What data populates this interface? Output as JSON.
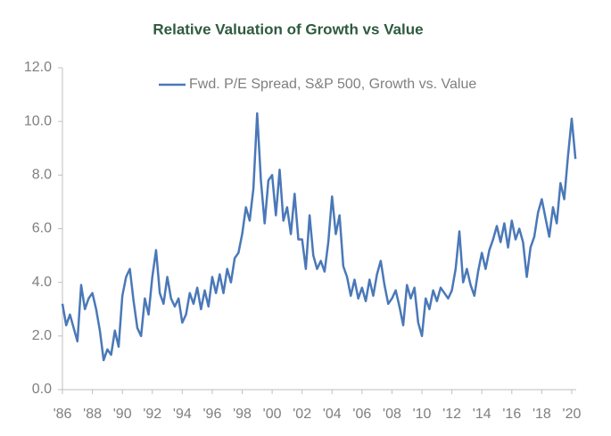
{
  "chart_data": {
    "type": "line",
    "title": "Relative Valuation of Growth vs Value",
    "x": [
      1986.0,
      1986.25,
      1986.5,
      1986.75,
      1987.0,
      1987.25,
      1987.5,
      1987.75,
      1988.0,
      1988.25,
      1988.5,
      1988.75,
      1989.0,
      1989.25,
      1989.5,
      1989.75,
      1990.0,
      1990.25,
      1990.5,
      1990.75,
      1991.0,
      1991.25,
      1991.5,
      1991.75,
      1992.0,
      1992.25,
      1992.5,
      1992.75,
      1993.0,
      1993.25,
      1993.5,
      1993.75,
      1994.0,
      1994.25,
      1994.5,
      1994.75,
      1995.0,
      1995.25,
      1995.5,
      1995.75,
      1996.0,
      1996.25,
      1996.5,
      1996.75,
      1997.0,
      1997.25,
      1997.5,
      1997.75,
      1998.0,
      1998.25,
      1998.5,
      1998.75,
      1999.0,
      1999.25,
      1999.5,
      1999.75,
      2000.0,
      2000.25,
      2000.5,
      2000.75,
      2001.0,
      2001.25,
      2001.5,
      2001.75,
      2002.0,
      2002.25,
      2002.5,
      2002.75,
      2003.0,
      2003.25,
      2003.5,
      2003.75,
      2004.0,
      2004.25,
      2004.5,
      2004.75,
      2005.0,
      2005.25,
      2005.5,
      2005.75,
      2006.0,
      2006.25,
      2006.5,
      2006.75,
      2007.0,
      2007.25,
      2007.5,
      2007.75,
      2008.0,
      2008.25,
      2008.5,
      2008.75,
      2009.0,
      2009.25,
      2009.5,
      2009.75,
      2010.0,
      2010.25,
      2010.5,
      2010.75,
      2011.0,
      2011.25,
      2011.5,
      2011.75,
      2012.0,
      2012.25,
      2012.5,
      2012.75,
      2013.0,
      2013.25,
      2013.5,
      2013.75,
      2014.0,
      2014.25,
      2014.5,
      2014.75,
      2015.0,
      2015.25,
      2015.5,
      2015.75,
      2016.0,
      2016.25,
      2016.5,
      2016.75,
      2017.0,
      2017.25,
      2017.5,
      2017.75,
      2018.0,
      2018.25,
      2018.5,
      2018.75,
      2019.0,
      2019.25,
      2019.5,
      2019.75,
      2020.0,
      2020.25
    ],
    "series": [
      {
        "name": "Fwd. P/E Spread, S&P 500, Growth vs. Value",
        "color": "#4a78b8",
        "values": [
          3.2,
          2.4,
          2.8,
          2.3,
          1.8,
          3.9,
          3.0,
          3.4,
          3.6,
          3.0,
          2.2,
          1.1,
          1.5,
          1.3,
          2.2,
          1.6,
          3.5,
          4.2,
          4.5,
          3.3,
          2.3,
          2.0,
          3.4,
          2.8,
          4.2,
          5.2,
          3.6,
          3.2,
          4.2,
          3.4,
          3.1,
          3.4,
          2.5,
          2.8,
          3.6,
          3.2,
          3.8,
          3.0,
          3.7,
          3.1,
          4.2,
          3.6,
          4.3,
          3.6,
          4.5,
          4.0,
          4.9,
          5.1,
          5.8,
          6.8,
          6.3,
          7.5,
          10.3,
          7.8,
          6.2,
          7.8,
          8.0,
          6.5,
          8.2,
          6.3,
          6.8,
          5.8,
          7.3,
          5.6,
          5.6,
          4.5,
          6.5,
          5.0,
          4.5,
          4.8,
          4.4,
          5.5,
          7.2,
          5.8,
          6.5,
          4.6,
          4.2,
          3.5,
          4.1,
          3.4,
          3.8,
          3.3,
          4.1,
          3.5,
          4.3,
          4.8,
          3.9,
          3.2,
          3.4,
          3.7,
          3.1,
          2.4,
          3.9,
          3.4,
          3.8,
          2.5,
          2.0,
          3.4,
          3.0,
          3.7,
          3.3,
          3.8,
          3.6,
          3.4,
          3.7,
          4.5,
          5.9,
          4.0,
          4.5,
          3.9,
          3.5,
          4.4,
          5.1,
          4.5,
          5.2,
          5.6,
          6.1,
          5.5,
          6.2,
          5.3,
          6.3,
          5.6,
          6.0,
          5.5,
          4.2,
          5.3,
          5.7,
          6.6,
          7.1,
          6.4,
          5.7,
          6.8,
          6.2,
          7.7,
          7.1,
          8.7,
          10.1,
          8.6
        ]
      }
    ],
    "xlim": [
      1986,
      2020.3
    ],
    "xticks": [
      {
        "value": 1986,
        "label": "'86"
      },
      {
        "value": 1988,
        "label": "'88"
      },
      {
        "value": 1990,
        "label": "'90"
      },
      {
        "value": 1992,
        "label": "'92"
      },
      {
        "value": 1994,
        "label": "'94"
      },
      {
        "value": 1996,
        "label": "'96"
      },
      {
        "value": 1998,
        "label": "'98"
      },
      {
        "value": 2000,
        "label": "'00"
      },
      {
        "value": 2002,
        "label": "'02"
      },
      {
        "value": 2004,
        "label": "'04"
      },
      {
        "value": 2006,
        "label": "'06"
      },
      {
        "value": 2008,
        "label": "'08"
      },
      {
        "value": 2010,
        "label": "'10"
      },
      {
        "value": 2012,
        "label": "'12"
      },
      {
        "value": 2014,
        "label": "'14"
      },
      {
        "value": 2016,
        "label": "'16"
      },
      {
        "value": 2018,
        "label": "'18"
      },
      {
        "value": 2020,
        "label": "'20"
      }
    ],
    "ylim": [
      0,
      12
    ],
    "yticks": [
      {
        "value": 0,
        "label": "0.0"
      },
      {
        "value": 2,
        "label": "2.0"
      },
      {
        "value": 4,
        "label": "4.0"
      },
      {
        "value": 6,
        "label": "6.0"
      },
      {
        "value": 8,
        "label": "8.0"
      },
      {
        "value": 10,
        "label": "10.0"
      },
      {
        "value": 12,
        "label": "12.0"
      }
    ],
    "grid": false
  }
}
